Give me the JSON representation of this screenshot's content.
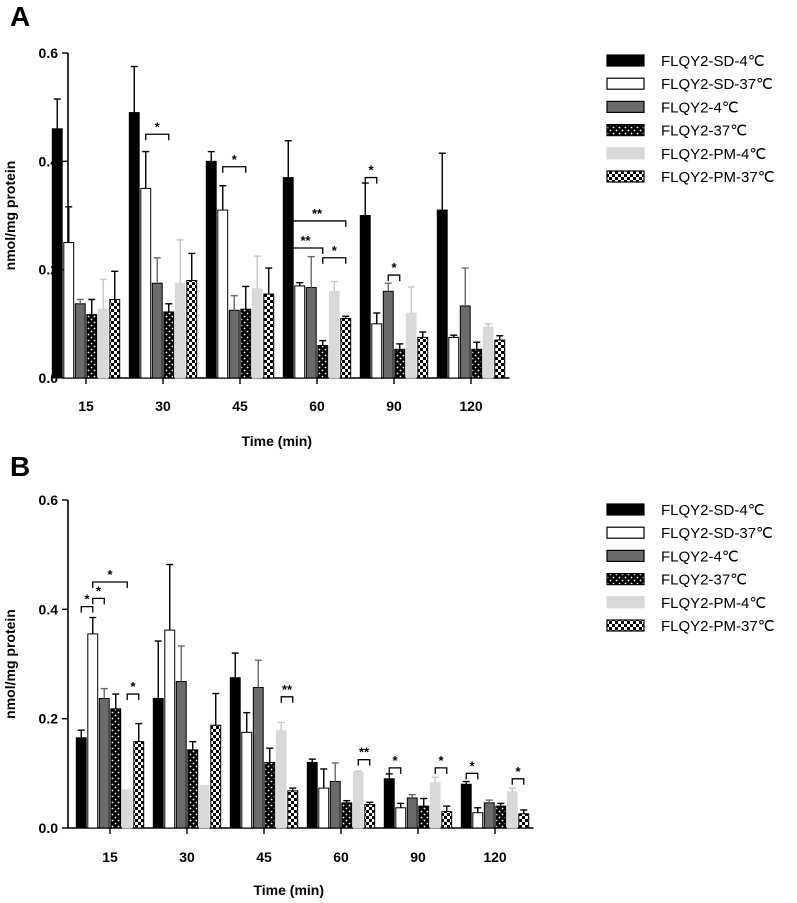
{
  "colors": {
    "FLQY2-SD-4℃": "#000000",
    "FLQY2-SD-37℃": "#ffffff",
    "FLQY2-4℃": "#6b6b6b",
    "FLQY2-37℃": "#000000",
    "FLQY2-PM-4℃": "#d9d9d9",
    "FLQY2-PM-37℃": "#ffffff"
  },
  "chart_data": [
    {
      "type": "bar",
      "panel": "A",
      "xlabel": "Time (min)",
      "ylabel": "nmol/mg protein",
      "ylim": [
        0,
        0.6
      ],
      "yticks": [
        "0.0",
        "0.2",
        "0.4",
        "0.6"
      ],
      "categories": [
        "15",
        "30",
        "45",
        "60",
        "90",
        "120"
      ],
      "grid": false,
      "legend_position": "right",
      "series": [
        {
          "name": "FLQY2-SD-4℃",
          "pattern": "solid-black",
          "values": [
            0.46,
            0.49,
            0.4,
            0.37,
            0.3,
            0.31
          ],
          "errors": [
            0.055,
            0.085,
            0.018,
            0.068,
            0.06,
            0.105
          ]
        },
        {
          "name": "FLQY2-SD-37℃",
          "pattern": "white",
          "values": [
            0.25,
            0.35,
            0.31,
            0.17,
            0.1,
            0.075
          ],
          "errors": [
            0.066,
            0.068,
            0.045,
            0.006,
            0.02,
            0.004
          ]
        },
        {
          "name": "FLQY2-4℃",
          "pattern": "dark-gray",
          "values": [
            0.137,
            0.175,
            0.125,
            0.167,
            0.16,
            0.133
          ],
          "errors": [
            0.008,
            0.047,
            0.027,
            0.057,
            0.015,
            0.07
          ]
        },
        {
          "name": "FLQY2-37℃",
          "pattern": "black-dotted",
          "values": [
            0.117,
            0.122,
            0.127,
            0.06,
            0.053,
            0.053
          ],
          "errors": [
            0.028,
            0.015,
            0.042,
            0.009,
            0.01,
            0.013
          ]
        },
        {
          "name": "FLQY2-PM-4℃",
          "pattern": "light-gray",
          "values": [
            0.127,
            0.175,
            0.165,
            0.16,
            0.12,
            0.094
          ],
          "errors": [
            0.055,
            0.08,
            0.06,
            0.018,
            0.048,
            0.006
          ]
        },
        {
          "name": "FLQY2-PM-37℃",
          "pattern": "checker",
          "values": [
            0.145,
            0.18,
            0.155,
            0.11,
            0.075,
            0.07
          ],
          "errors": [
            0.052,
            0.05,
            0.048,
            0.004,
            0.01,
            0.008
          ]
        }
      ],
      "significance": [
        {
          "cat": 1,
          "from": 1,
          "to": 3,
          "y": 0.45,
          "label": "*"
        },
        {
          "cat": 2,
          "from": 1,
          "to": 3,
          "y": 0.39,
          "label": "*"
        },
        {
          "cat": 3,
          "from": 0,
          "to": 5,
          "y": 0.29,
          "label": "**"
        },
        {
          "cat": 3,
          "from": 0,
          "to": 3,
          "y": 0.24,
          "label": "**"
        },
        {
          "cat": 3,
          "from": 3,
          "to": 5,
          "y": 0.222,
          "label": "*"
        },
        {
          "cat": 4,
          "from": 0,
          "to": 1,
          "y": 0.37,
          "label": "*"
        },
        {
          "cat": 4,
          "from": 2,
          "to": 3,
          "y": 0.19,
          "label": "*"
        }
      ]
    },
    {
      "type": "bar",
      "panel": "B",
      "xlabel": "Time (min)",
      "ylabel": "nmol/mg protein",
      "ylim": [
        0,
        0.6
      ],
      "yticks": [
        "0.0",
        "0.2",
        "0.4",
        "0.6"
      ],
      "categories": [
        "15",
        "30",
        "45",
        "60",
        "90",
        "120"
      ],
      "grid": false,
      "legend_position": "right",
      "series": [
        {
          "name": "FLQY2-SD-4℃",
          "pattern": "solid-black",
          "values": [
            0.165,
            0.237,
            0.275,
            0.12,
            0.09,
            0.08
          ],
          "errors": [
            0.014,
            0.105,
            0.045,
            0.006,
            0.009,
            0.005
          ]
        },
        {
          "name": "FLQY2-SD-37℃",
          "pattern": "white",
          "values": [
            0.355,
            0.362,
            0.175,
            0.073,
            0.037,
            0.028
          ],
          "errors": [
            0.03,
            0.12,
            0.036,
            0.035,
            0.008,
            0.009
          ]
        },
        {
          "name": "FLQY2-4℃",
          "pattern": "dark-gray",
          "values": [
            0.237,
            0.268,
            0.257,
            0.085,
            0.055,
            0.046
          ],
          "errors": [
            0.018,
            0.065,
            0.05,
            0.034,
            0.006,
            0.005
          ]
        },
        {
          "name": "FLQY2-37℃",
          "pattern": "black-dotted",
          "values": [
            0.218,
            0.143,
            0.12,
            0.046,
            0.04,
            0.04
          ],
          "errors": [
            0.027,
            0.015,
            0.026,
            0.004,
            0.014,
            0.005
          ]
        },
        {
          "name": "FLQY2-PM-4℃",
          "pattern": "light-gray",
          "values": [
            0.07,
            0.078,
            0.178,
            0.102,
            0.083,
            0.066
          ],
          "errors": [
            0,
            0,
            0.015,
            0.002,
            0.01,
            0.007
          ]
        },
        {
          "name": "FLQY2-PM-37℃",
          "pattern": "checker",
          "values": [
            0.158,
            0.188,
            0.068,
            0.043,
            0.03,
            0.026
          ],
          "errors": [
            0.033,
            0.058,
            0.005,
            0.004,
            0.01,
            0.007
          ]
        }
      ],
      "significance": [
        {
          "cat": 0,
          "from": 0,
          "to": 1,
          "y": 0.405,
          "label": "*"
        },
        {
          "cat": 0,
          "from": 1,
          "to": 2,
          "y": 0.42,
          "label": "*"
        },
        {
          "cat": 0,
          "from": 1,
          "to": 4,
          "y": 0.45,
          "label": "*"
        },
        {
          "cat": 0,
          "from": 4,
          "to": 5,
          "y": 0.245,
          "label": "*"
        },
        {
          "cat": 2,
          "from": 4,
          "to": 5,
          "y": 0.24,
          "label": "**"
        },
        {
          "cat": 3,
          "from": 4,
          "to": 5,
          "y": 0.125,
          "label": "**"
        },
        {
          "cat": 4,
          "from": 0,
          "to": 1,
          "y": 0.11,
          "label": "*"
        },
        {
          "cat": 4,
          "from": 4,
          "to": 5,
          "y": 0.11,
          "label": "*"
        },
        {
          "cat": 5,
          "from": 0,
          "to": 1,
          "y": 0.1,
          "label": "*"
        },
        {
          "cat": 5,
          "from": 4,
          "to": 5,
          "y": 0.09,
          "label": "*"
        }
      ]
    }
  ]
}
